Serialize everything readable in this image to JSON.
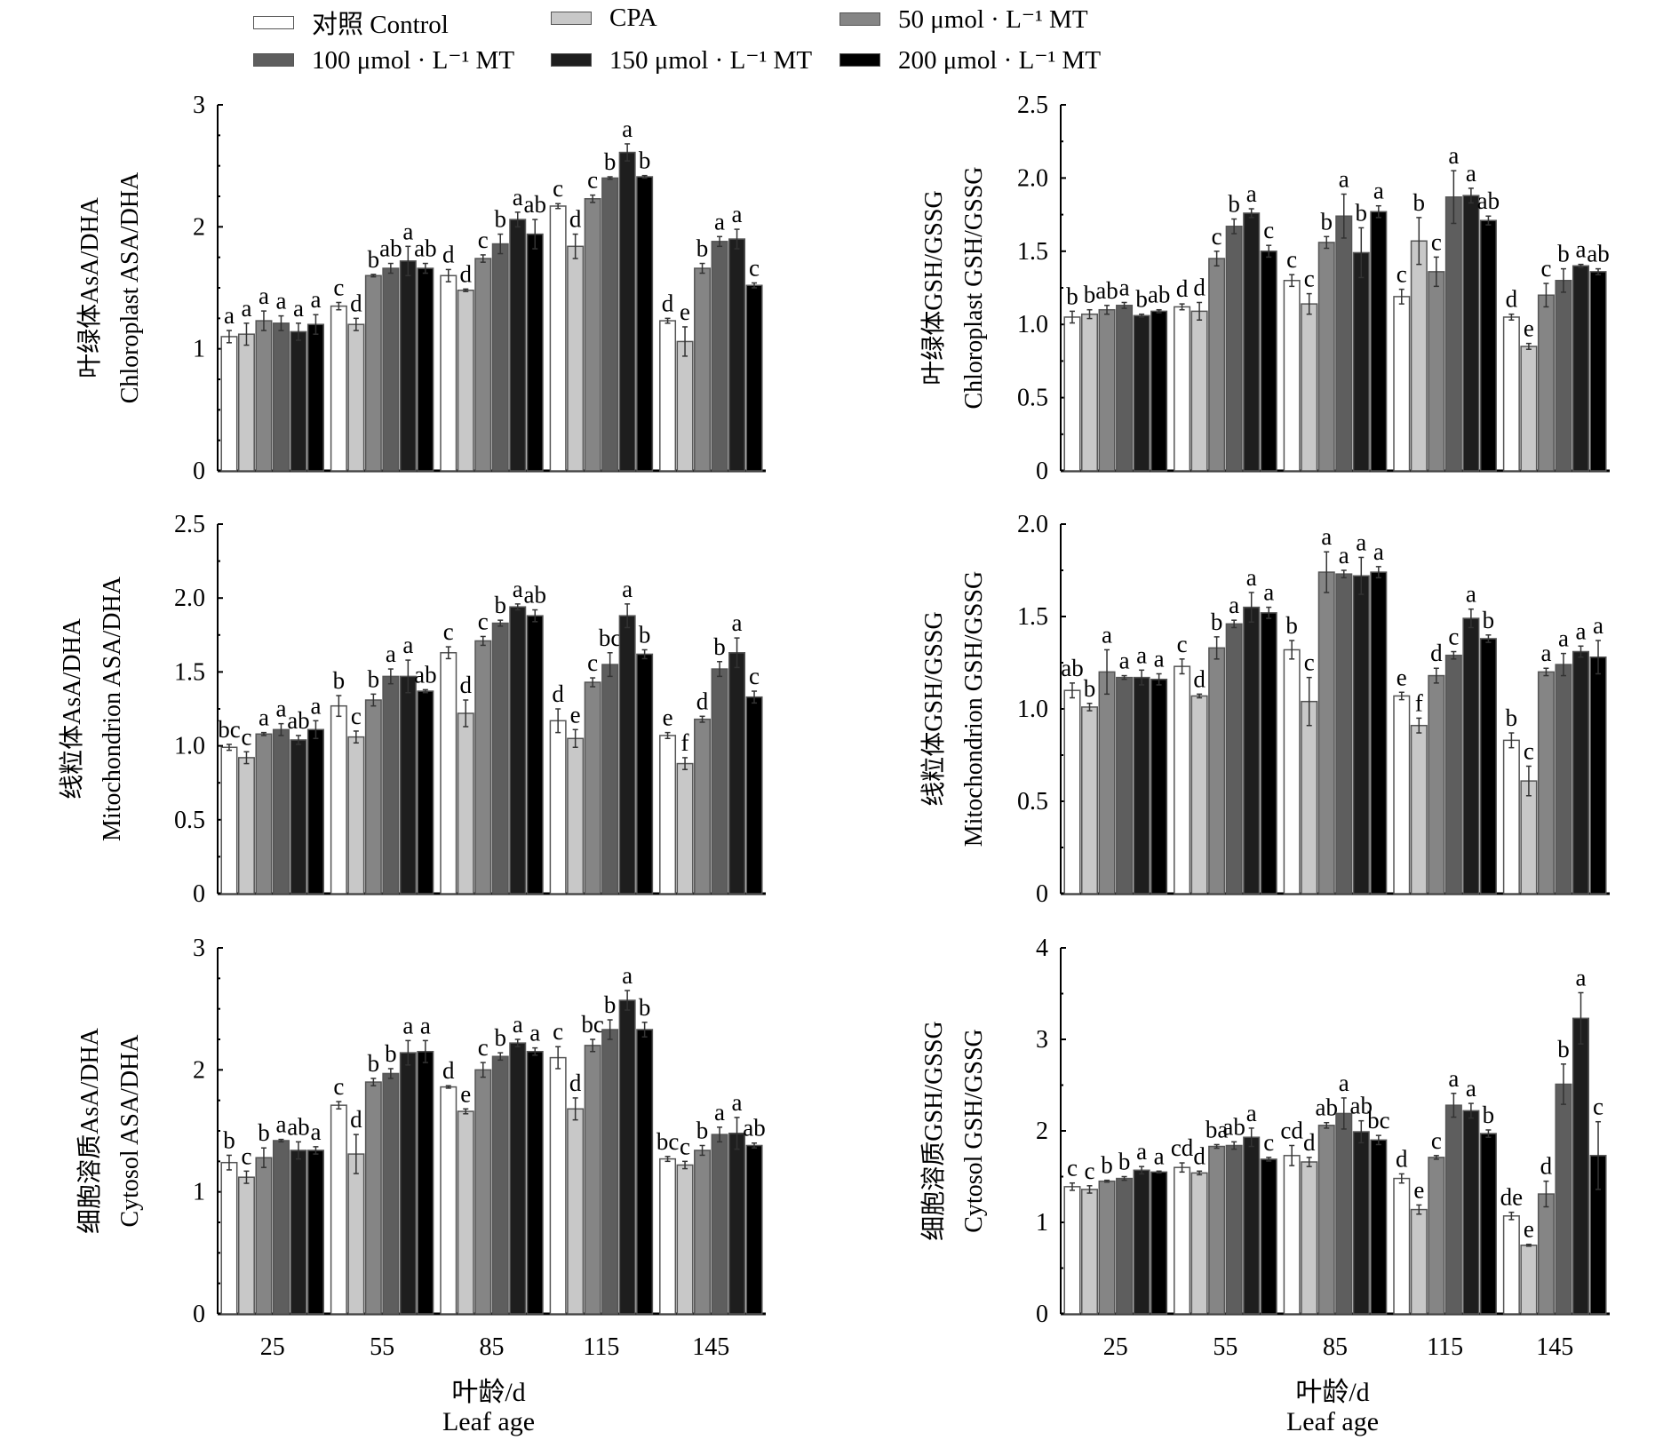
{
  "legend": [
    {
      "label": "对照 Control",
      "color": "#ffffff"
    },
    {
      "label": "CPA",
      "color": "#c8c8c8"
    },
    {
      "label": "50 μmol · L⁻¹ MT",
      "color": "#858585"
    },
    {
      "label": "100 μmol · L⁻¹ MT",
      "color": "#5e5e5e"
    },
    {
      "label": "150 μmol · L⁻¹ MT",
      "color": "#1e1e1e"
    },
    {
      "label": "200 μmol · L⁻¹ MT",
      "color": "#000000"
    }
  ],
  "x_axis": {
    "title_cn": "叶龄/d",
    "title_en": "Leaf age"
  },
  "chart_data": [
    {
      "type": "bar",
      "title": "",
      "ylabel_cn": "叶绿体AsA/DHA",
      "ylabel_en": "Chloroplast ASA/DHA",
      "xlabel": "叶龄/d Leaf age",
      "categories": [
        "25",
        "55",
        "85",
        "115",
        "145"
      ],
      "ylim": [
        0,
        3
      ],
      "yticks": [
        "0",
        "1",
        "2",
        "3"
      ],
      "grid": false,
      "series": [
        {
          "name": "对照 Control",
          "values": [
            1.1,
            1.35,
            1.6,
            2.17,
            1.23
          ],
          "errors": [
            0.05,
            0.03,
            0.05,
            0.02,
            0.02
          ],
          "letters": [
            "a",
            "c",
            "d",
            "c",
            "d"
          ]
        },
        {
          "name": "CPA",
          "values": [
            1.12,
            1.2,
            1.48,
            1.84,
            1.06
          ],
          "errors": [
            0.09,
            0.05,
            0.01,
            0.1,
            0.12
          ],
          "letters": [
            "a",
            "d",
            "d",
            "d",
            "e"
          ]
        },
        {
          "name": "50 μmol · L⁻¹ MT",
          "values": [
            1.23,
            1.6,
            1.74,
            2.23,
            1.66
          ],
          "errors": [
            0.08,
            0.01,
            0.03,
            0.03,
            0.04
          ],
          "letters": [
            "a",
            "b",
            "c",
            "c",
            "b"
          ]
        },
        {
          "name": "100 μmol · L⁻¹ MT",
          "values": [
            1.21,
            1.66,
            1.86,
            2.4,
            1.88
          ],
          "errors": [
            0.06,
            0.04,
            0.08,
            0.01,
            0.04
          ],
          "letters": [
            "a",
            "ab",
            "b",
            "b",
            "a"
          ]
        },
        {
          "name": "150 μmol · L⁻¹ MT",
          "values": [
            1.14,
            1.72,
            2.06,
            2.61,
            1.9
          ],
          "errors": [
            0.07,
            0.12,
            0.06,
            0.07,
            0.08
          ],
          "letters": [
            "a",
            "a",
            "a",
            "a",
            "a"
          ]
        },
        {
          "name": "200 μmol · L⁻¹ MT",
          "values": [
            1.2,
            1.66,
            1.94,
            2.41,
            1.52
          ],
          "errors": [
            0.08,
            0.04,
            0.12,
            0.01,
            0.02
          ],
          "letters": [
            "a",
            "ab",
            "ab",
            "b",
            "c"
          ]
        }
      ]
    },
    {
      "type": "bar",
      "title": "",
      "ylabel_cn": "叶绿体GSH/GSSG",
      "ylabel_en": "Chloroplast GSH/GSSG",
      "xlabel": "叶龄/d Leaf age",
      "categories": [
        "25",
        "55",
        "85",
        "115",
        "145"
      ],
      "ylim": [
        0,
        2.5
      ],
      "yticks": [
        "0",
        "0.5",
        "1.0",
        "1.5",
        "2.0",
        "2.5"
      ],
      "grid": false,
      "series": [
        {
          "name": "对照 Control",
          "values": [
            1.05,
            1.12,
            1.3,
            1.19,
            1.05
          ],
          "errors": [
            0.04,
            0.02,
            0.04,
            0.05,
            0.02
          ],
          "letters": [
            "b",
            "d",
            "c",
            "c",
            "d"
          ]
        },
        {
          "name": "CPA",
          "values": [
            1.07,
            1.09,
            1.14,
            1.57,
            0.85
          ],
          "errors": [
            0.03,
            0.06,
            0.07,
            0.16,
            0.02
          ],
          "letters": [
            "b",
            "d",
            "c",
            "b",
            "e"
          ]
        },
        {
          "name": "50 μmol · L⁻¹ MT",
          "values": [
            1.1,
            1.45,
            1.56,
            1.36,
            1.2
          ],
          "errors": [
            0.03,
            0.05,
            0.04,
            0.1,
            0.08
          ],
          "letters": [
            "ab",
            "c",
            "b",
            "c",
            "c"
          ]
        },
        {
          "name": "100 μmol · L⁻¹ MT",
          "values": [
            1.13,
            1.67,
            1.74,
            1.87,
            1.3
          ],
          "errors": [
            0.02,
            0.05,
            0.15,
            0.18,
            0.08
          ],
          "letters": [
            "a",
            "b",
            "a",
            "a",
            "b"
          ]
        },
        {
          "name": "150 μmol · L⁻¹ MT",
          "values": [
            1.06,
            1.76,
            1.49,
            1.88,
            1.4
          ],
          "errors": [
            0.01,
            0.03,
            0.17,
            0.05,
            0.01
          ],
          "letters": [
            "b",
            "a",
            "b",
            "a",
            "a"
          ]
        },
        {
          "name": "200 μmol · L⁻¹ MT",
          "values": [
            1.09,
            1.5,
            1.77,
            1.71,
            1.36
          ],
          "errors": [
            0.01,
            0.04,
            0.04,
            0.03,
            0.02
          ],
          "letters": [
            "ab",
            "c",
            "a",
            "ab",
            "ab"
          ]
        }
      ]
    },
    {
      "type": "bar",
      "title": "",
      "ylabel_cn": "线粒体AsA/DHA",
      "ylabel_en": "Mitochondrion ASA/DHA",
      "xlabel": "叶龄/d Leaf age",
      "categories": [
        "25",
        "55",
        "85",
        "115",
        "145"
      ],
      "ylim": [
        0,
        2.5
      ],
      "yticks": [
        "0",
        "0.5",
        "1.0",
        "1.5",
        "2.0",
        "2.5"
      ],
      "grid": false,
      "series": [
        {
          "name": "对照 Control",
          "values": [
            0.99,
            1.27,
            1.63,
            1.17,
            1.07
          ],
          "errors": [
            0.02,
            0.07,
            0.04,
            0.08,
            0.02
          ],
          "letters": [
            "bc",
            "b",
            "c",
            "d",
            "e"
          ]
        },
        {
          "name": "CPA",
          "values": [
            0.92,
            1.06,
            1.22,
            1.05,
            0.88
          ],
          "errors": [
            0.04,
            0.04,
            0.09,
            0.06,
            0.04
          ],
          "letters": [
            "c",
            "c",
            "d",
            "e",
            "f"
          ]
        },
        {
          "name": "50 μmol · L⁻¹ MT",
          "values": [
            1.08,
            1.31,
            1.71,
            1.43,
            1.18
          ],
          "errors": [
            0.01,
            0.04,
            0.03,
            0.03,
            0.02
          ],
          "letters": [
            "a",
            "b",
            "c",
            "c",
            "d"
          ]
        },
        {
          "name": "100 μmol · L⁻¹ MT",
          "values": [
            1.11,
            1.47,
            1.83,
            1.55,
            1.52
          ],
          "errors": [
            0.04,
            0.05,
            0.02,
            0.08,
            0.05
          ],
          "letters": [
            "a",
            "a",
            "b",
            "bc",
            "b"
          ]
        },
        {
          "name": "150 μmol · L⁻¹ MT",
          "values": [
            1.04,
            1.47,
            1.94,
            1.88,
            1.63
          ],
          "errors": [
            0.03,
            0.11,
            0.02,
            0.08,
            0.1
          ],
          "letters": [
            "ab",
            "a",
            "a",
            "a",
            "a"
          ]
        },
        {
          "name": "200 μmol · L⁻¹ MT",
          "values": [
            1.11,
            1.37,
            1.88,
            1.62,
            1.33
          ],
          "errors": [
            0.06,
            0.01,
            0.04,
            0.03,
            0.04
          ],
          "letters": [
            "a",
            "ab",
            "ab",
            "b",
            "c"
          ]
        }
      ]
    },
    {
      "type": "bar",
      "title": "",
      "ylabel_cn": "线粒体GSH/GSSG",
      "ylabel_en": "Mitochondrion GSH/GSSG",
      "xlabel": "叶龄/d Leaf age",
      "categories": [
        "25",
        "55",
        "85",
        "115",
        "145"
      ],
      "ylim": [
        0,
        2.0
      ],
      "yticks": [
        "0",
        "0.5",
        "1.0",
        "1.5",
        "2.0"
      ],
      "grid": false,
      "series": [
        {
          "name": "对照 Control",
          "values": [
            1.1,
            1.23,
            1.32,
            1.07,
            0.83
          ],
          "errors": [
            0.04,
            0.04,
            0.05,
            0.02,
            0.04
          ],
          "letters": [
            "ab",
            "c",
            "b",
            "e",
            "b"
          ]
        },
        {
          "name": "CPA",
          "values": [
            1.01,
            1.07,
            1.04,
            0.91,
            0.61
          ],
          "errors": [
            0.02,
            0.01,
            0.13,
            0.04,
            0.08
          ],
          "letters": [
            "b",
            "d",
            "c",
            "f",
            "c"
          ]
        },
        {
          "name": "50 μmol · L⁻¹ MT",
          "values": [
            1.2,
            1.33,
            1.74,
            1.18,
            1.2
          ],
          "errors": [
            0.12,
            0.06,
            0.11,
            0.04,
            0.02
          ],
          "letters": [
            "a",
            "b",
            "a",
            "d",
            "a"
          ]
        },
        {
          "name": "100 μmol · L⁻¹ MT",
          "values": [
            1.17,
            1.46,
            1.73,
            1.29,
            1.24
          ],
          "errors": [
            0.01,
            0.02,
            0.02,
            0.02,
            0.06
          ],
          "letters": [
            "a",
            "a",
            "a",
            "c",
            "a"
          ]
        },
        {
          "name": "150 μmol · L⁻¹ MT",
          "values": [
            1.17,
            1.55,
            1.72,
            1.49,
            1.31
          ],
          "errors": [
            0.04,
            0.08,
            0.1,
            0.05,
            0.03
          ],
          "letters": [
            "a",
            "a",
            "a",
            "a",
            "a"
          ]
        },
        {
          "name": "200 μmol · L⁻¹ MT",
          "values": [
            1.16,
            1.52,
            1.74,
            1.38,
            1.28
          ],
          "errors": [
            0.03,
            0.03,
            0.03,
            0.02,
            0.09
          ],
          "letters": [
            "a",
            "a",
            "a",
            "b",
            "a"
          ]
        }
      ]
    },
    {
      "type": "bar",
      "title": "",
      "ylabel_cn": "细胞溶质AsA/DHA",
      "ylabel_en": "Cytosol ASA/DHA",
      "xlabel": "叶龄/d Leaf age",
      "categories": [
        "25",
        "55",
        "85",
        "115",
        "145"
      ],
      "ylim": [
        0,
        3
      ],
      "yticks": [
        "0",
        "1",
        "2",
        "3"
      ],
      "grid": false,
      "series": [
        {
          "name": "对照 Control",
          "values": [
            1.24,
            1.71,
            1.86,
            2.1,
            1.27
          ],
          "errors": [
            0.06,
            0.03,
            0.01,
            0.09,
            0.02
          ],
          "letters": [
            "b",
            "c",
            "d",
            "c",
            "bc"
          ]
        },
        {
          "name": "CPA",
          "values": [
            1.12,
            1.31,
            1.66,
            1.68,
            1.22
          ],
          "errors": [
            0.05,
            0.16,
            0.02,
            0.09,
            0.03
          ],
          "letters": [
            "c",
            "d",
            "e",
            "d",
            "c"
          ]
        },
        {
          "name": "50 μmol · L⁻¹ MT",
          "values": [
            1.28,
            1.9,
            2.0,
            2.2,
            1.34
          ],
          "errors": [
            0.08,
            0.03,
            0.06,
            0.05,
            0.04
          ],
          "letters": [
            "b",
            "b",
            "c",
            "bc",
            "b"
          ]
        },
        {
          "name": "100 μmol · L⁻¹ MT",
          "values": [
            1.42,
            1.97,
            2.11,
            2.33,
            1.47
          ],
          "errors": [
            0.01,
            0.04,
            0.03,
            0.08,
            0.06
          ],
          "letters": [
            "a",
            "b",
            "b",
            "b",
            "a"
          ]
        },
        {
          "name": "150 μmol · L⁻¹ MT",
          "values": [
            1.34,
            2.14,
            2.22,
            2.57,
            1.48
          ],
          "errors": [
            0.07,
            0.1,
            0.03,
            0.08,
            0.13
          ],
          "letters": [
            "ab",
            "a",
            "a",
            "a",
            "a"
          ]
        },
        {
          "name": "200 μmol · L⁻¹ MT",
          "values": [
            1.34,
            2.15,
            2.15,
            2.33,
            1.38
          ],
          "errors": [
            0.03,
            0.09,
            0.03,
            0.06,
            0.02
          ],
          "letters": [
            "a",
            "a",
            "a",
            "b",
            "ab"
          ]
        }
      ]
    },
    {
      "type": "bar",
      "title": "",
      "ylabel_cn": "细胞溶质GSH/GSSG",
      "ylabel_en": "Cytosol GSH/GSSG",
      "xlabel": "叶龄/d Leaf age",
      "categories": [
        "25",
        "55",
        "85",
        "115",
        "145"
      ],
      "ylim": [
        0,
        4
      ],
      "yticks": [
        "0",
        "1",
        "2",
        "3",
        "4"
      ],
      "grid": false,
      "series": [
        {
          "name": "对照 Control",
          "values": [
            1.39,
            1.6,
            1.73,
            1.48,
            1.07
          ],
          "errors": [
            0.04,
            0.05,
            0.11,
            0.05,
            0.04
          ],
          "letters": [
            "c",
            "cd",
            "cd",
            "d",
            "de"
          ]
        },
        {
          "name": "CPA",
          "values": [
            1.36,
            1.54,
            1.66,
            1.14,
            0.75
          ],
          "errors": [
            0.04,
            0.02,
            0.05,
            0.05,
            0.01
          ],
          "letters": [
            "c",
            "d",
            "d",
            "e",
            "e"
          ]
        },
        {
          "name": "50 μmol · L⁻¹ MT",
          "values": [
            1.45,
            1.83,
            2.06,
            1.71,
            1.31
          ],
          "errors": [
            0.01,
            0.02,
            0.03,
            0.02,
            0.14
          ],
          "letters": [
            "b",
            "ba",
            "ab",
            "c",
            "d"
          ]
        },
        {
          "name": "100 μmol · L⁻¹ MT",
          "values": [
            1.48,
            1.84,
            2.19,
            2.28,
            2.51
          ],
          "errors": [
            0.02,
            0.04,
            0.17,
            0.13,
            0.22
          ],
          "letters": [
            "b",
            "ab",
            "a",
            "a",
            "b"
          ]
        },
        {
          "name": "150 μmol · L⁻¹ MT",
          "values": [
            1.57,
            1.93,
            1.99,
            2.22,
            3.23
          ],
          "errors": [
            0.04,
            0.1,
            0.12,
            0.08,
            0.28
          ],
          "letters": [
            "a",
            "a",
            "ab",
            "a",
            "a"
          ]
        },
        {
          "name": "200 μmol · L⁻¹ MT",
          "values": [
            1.55,
            1.69,
            1.9,
            1.97,
            1.73
          ],
          "errors": [
            0.01,
            0.02,
            0.05,
            0.04,
            0.37
          ],
          "letters": [
            "a",
            "c",
            "bc",
            "b",
            "c"
          ]
        }
      ]
    }
  ]
}
